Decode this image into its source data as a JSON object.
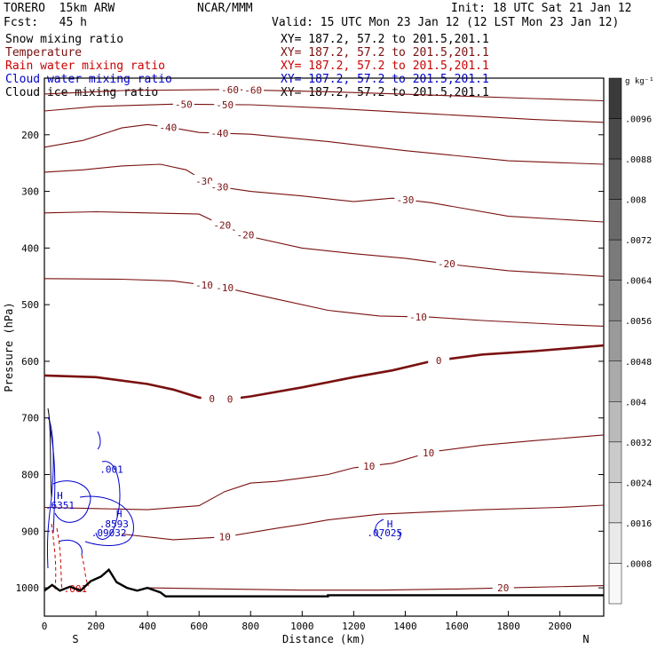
{
  "header": {
    "model": "TORERO  15km ARW",
    "center": "NCAR/MMM",
    "init": "Init: 18 UTC Sat 21 Jan 12",
    "fcst": "Fcst:   45 h",
    "valid": "Valid: 15 UTC Mon 23 Jan 12 (12 LST Mon 23 Jan 12)"
  },
  "colors": {
    "snow": "#000000",
    "temperature": "#7a1010",
    "rain": "#cc0000",
    "cloud_water": "#0000cc",
    "cloud_ice": "#000000",
    "terrain": "#000000"
  },
  "chart_data": {
    "type": "line",
    "title": "",
    "xlabel": "Distance (km)",
    "ylabel": "Pressure (hPa)",
    "xlim": [
      0,
      2170
    ],
    "ylim": [
      1050,
      100
    ],
    "x_ticks": [
      "0",
      "200",
      "400",
      "600",
      "800",
      "1000",
      "1200",
      "1400",
      "1600",
      "1800",
      "2000"
    ],
    "y_ticks": [
      "200",
      "300",
      "400",
      "500",
      "600",
      "700",
      "800",
      "900",
      "1000"
    ],
    "direction_labels": {
      "left": "S",
      "right": "N"
    },
    "fields": [
      {
        "name": "Snow mixing ratio",
        "xy": "XY= 187.2, 57.2 to 201.5,201.1",
        "color": "#000000"
      },
      {
        "name": "Temperature",
        "xy": "XY= 187.2, 57.2 to 201.5,201.1",
        "color": "#7a1010"
      },
      {
        "name": "Rain water mixing ratio",
        "xy": "XY= 187.2, 57.2 to 201.5,201.1",
        "color": "#cc0000"
      },
      {
        "name": "Cloud water mixing ratio",
        "xy": "XY= 187.2, 57.2 to 201.5,201.1",
        "color": "#0000cc"
      },
      {
        "name": "Cloud ice mixing ratio",
        "xy": "XY= 187.2, 57.2 to 201.5,201.1",
        "color": "#000000"
      }
    ],
    "temperature_contours": [
      {
        "label": "-60",
        "bold": false,
        "points": [
          [
            0,
            128
          ],
          [
            300,
            122
          ],
          [
            700,
            120
          ],
          [
            1100,
            124
          ],
          [
            1500,
            130
          ],
          [
            1900,
            136
          ],
          [
            2170,
            140
          ]
        ],
        "labels": [
          {
            "text": "-60",
            "x": 720
          },
          {
            "text": "-60",
            "x": 810
          }
        ]
      },
      {
        "label": "-50",
        "bold": false,
        "points": [
          [
            0,
            158
          ],
          [
            200,
            150
          ],
          [
            500,
            146
          ],
          [
            800,
            147
          ],
          [
            1100,
            153
          ],
          [
            1500,
            163
          ],
          [
            1900,
            173
          ],
          [
            2170,
            178
          ]
        ],
        "labels": [
          {
            "text": "-50",
            "x": 540
          },
          {
            "text": "-50",
            "x": 700
          }
        ]
      },
      {
        "label": "-40",
        "bold": false,
        "points": [
          [
            0,
            222
          ],
          [
            150,
            210
          ],
          [
            300,
            188
          ],
          [
            400,
            182
          ],
          [
            500,
            188
          ],
          [
            600,
            196
          ],
          [
            800,
            199
          ],
          [
            1100,
            212
          ],
          [
            1400,
            228
          ],
          [
            1800,
            246
          ],
          [
            2170,
            252
          ]
        ],
        "labels": [
          {
            "text": "-40",
            "x": 480
          },
          {
            "text": "-40",
            "x": 680
          }
        ]
      },
      {
        "label": "-30",
        "bold": false,
        "points": [
          [
            0,
            266
          ],
          [
            150,
            262
          ],
          [
            300,
            255
          ],
          [
            450,
            252
          ],
          [
            550,
            262
          ],
          [
            650,
            290
          ],
          [
            800,
            300
          ],
          [
            1000,
            308
          ],
          [
            1200,
            318
          ],
          [
            1350,
            312
          ],
          [
            1500,
            320
          ],
          [
            1800,
            344
          ],
          [
            2170,
            354
          ]
        ],
        "labels": [
          {
            "text": "-30",
            "x": 620
          },
          {
            "text": "-30",
            "x": 680
          },
          {
            "text": "-30",
            "x": 1400
          }
        ]
      },
      {
        "label": "-20",
        "bold": false,
        "points": [
          [
            0,
            338
          ],
          [
            200,
            336
          ],
          [
            400,
            338
          ],
          [
            600,
            340
          ],
          [
            700,
            362
          ],
          [
            800,
            380
          ],
          [
            1000,
            400
          ],
          [
            1200,
            410
          ],
          [
            1400,
            418
          ],
          [
            1600,
            430
          ],
          [
            1800,
            440
          ],
          [
            2170,
            450
          ]
        ],
        "labels": [
          {
            "text": "-20",
            "x": 690
          },
          {
            "text": "-20",
            "x": 780
          },
          {
            "text": "-20",
            "x": 1560
          }
        ]
      },
      {
        "label": "-10",
        "bold": false,
        "points": [
          [
            0,
            454
          ],
          [
            300,
            455
          ],
          [
            500,
            458
          ],
          [
            700,
            470
          ],
          [
            900,
            490
          ],
          [
            1100,
            510
          ],
          [
            1300,
            520
          ],
          [
            1500,
            522
          ],
          [
            1700,
            528
          ],
          [
            2000,
            535
          ],
          [
            2170,
            538
          ]
        ],
        "labels": [
          {
            "text": "-10",
            "x": 620
          },
          {
            "text": "-10",
            "x": 700
          },
          {
            "text": "-10",
            "x": 1450
          }
        ]
      },
      {
        "label": "0",
        "bold": true,
        "points": [
          [
            0,
            625
          ],
          [
            200,
            628
          ],
          [
            400,
            640
          ],
          [
            500,
            650
          ],
          [
            600,
            664
          ],
          [
            700,
            668
          ],
          [
            800,
            662
          ],
          [
            1000,
            646
          ],
          [
            1200,
            628
          ],
          [
            1350,
            616
          ],
          [
            1500,
            600
          ],
          [
            1700,
            588
          ],
          [
            1900,
            582
          ],
          [
            2170,
            572
          ]
        ],
        "labels": [
          {
            "text": "0",
            "x": 650
          },
          {
            "text": "0",
            "x": 720
          },
          {
            "text": "0",
            "x": 1530
          }
        ]
      },
      {
        "label": "10",
        "bold": false,
        "points": [
          [
            0,
            858
          ],
          [
            200,
            860
          ],
          [
            400,
            862
          ],
          [
            600,
            855
          ],
          [
            700,
            830
          ],
          [
            800,
            815
          ],
          [
            900,
            812
          ],
          [
            1000,
            806
          ],
          [
            1100,
            800
          ],
          [
            1200,
            788
          ],
          [
            1350,
            780
          ],
          [
            1500,
            760
          ],
          [
            1700,
            748
          ],
          [
            1900,
            740
          ],
          [
            2170,
            730
          ]
        ],
        "labels": [
          {
            "text": "10",
            "x": 1260
          },
          {
            "text": "10",
            "x": 1490
          }
        ]
      },
      {
        "label": "10b",
        "bold": false,
        "points": [
          [
            300,
            905
          ],
          [
            500,
            915
          ],
          [
            700,
            910
          ],
          [
            900,
            895
          ],
          [
            1000,
            888
          ],
          [
            1100,
            880
          ],
          [
            1300,
            870
          ],
          [
            1500,
            866
          ],
          [
            1700,
            862
          ],
          [
            2000,
            858
          ],
          [
            2170,
            854
          ]
        ],
        "labels": [
          {
            "text": "10",
            "x": 700
          }
        ]
      },
      {
        "label": "20",
        "bold": false,
        "points": [
          [
            400,
            1000
          ],
          [
            700,
            1002
          ],
          [
            1000,
            1004
          ],
          [
            1300,
            1004
          ],
          [
            1600,
            1002
          ],
          [
            1800,
            1000
          ],
          [
            2170,
            996
          ]
        ],
        "labels": [
          {
            "text": "20",
            "x": 1780
          }
        ]
      }
    ],
    "cloud_water_labels": [
      {
        "text": ".001",
        "x": 260,
        "p": 797
      },
      {
        "text": "H",
        "x": 60,
        "p": 843
      },
      {
        "text": ".6351",
        "x": 60,
        "p": 860
      },
      {
        "text": "H",
        "x": 290,
        "p": 875
      },
      {
        "text": ".8593",
        "x": 270,
        "p": 893
      },
      {
        "text": ".09032",
        "x": 250,
        "p": 909
      },
      {
        "text": "H",
        "x": 1340,
        "p": 893
      },
      {
        "text": ".07025",
        "x": 1320,
        "p": 909
      }
    ],
    "rain_labels": [
      {
        "text": ".001",
        "x": 120,
        "p": 1008
      }
    ],
    "terrain": {
      "points": [
        [
          0,
          1005
        ],
        [
          30,
          995
        ],
        [
          60,
          1005
        ],
        [
          100,
          998
        ],
        [
          140,
          1005
        ],
        [
          180,
          988
        ],
        [
          220,
          980
        ],
        [
          250,
          968
        ],
        [
          280,
          990
        ],
        [
          320,
          1000
        ],
        [
          360,
          1005
        ],
        [
          400,
          1000
        ],
        [
          450,
          1008
        ],
        [
          470,
          1015
        ],
        [
          600,
          1015
        ],
        [
          1100,
          1015
        ],
        [
          1100,
          1013
        ],
        [
          2170,
          1013
        ]
      ]
    },
    "colorbar": {
      "unit": "g kg⁻¹",
      "ticks": [
        ".0096",
        ".0088",
        ".008",
        ".0072",
        ".0064",
        ".0056",
        ".0048",
        ".004",
        ".0032",
        ".0024",
        ".0016",
        ".0008"
      ],
      "shades": [
        "#3a3a3a",
        "#4a4a4a",
        "#5a5a5a",
        "#6a6a6a",
        "#7a7a7a",
        "#8a8a8a",
        "#9a9a9a",
        "#aaaaaa",
        "#bababa",
        "#cacaca",
        "#dadada",
        "#eaeaea",
        "#f8f8f8"
      ]
    }
  }
}
